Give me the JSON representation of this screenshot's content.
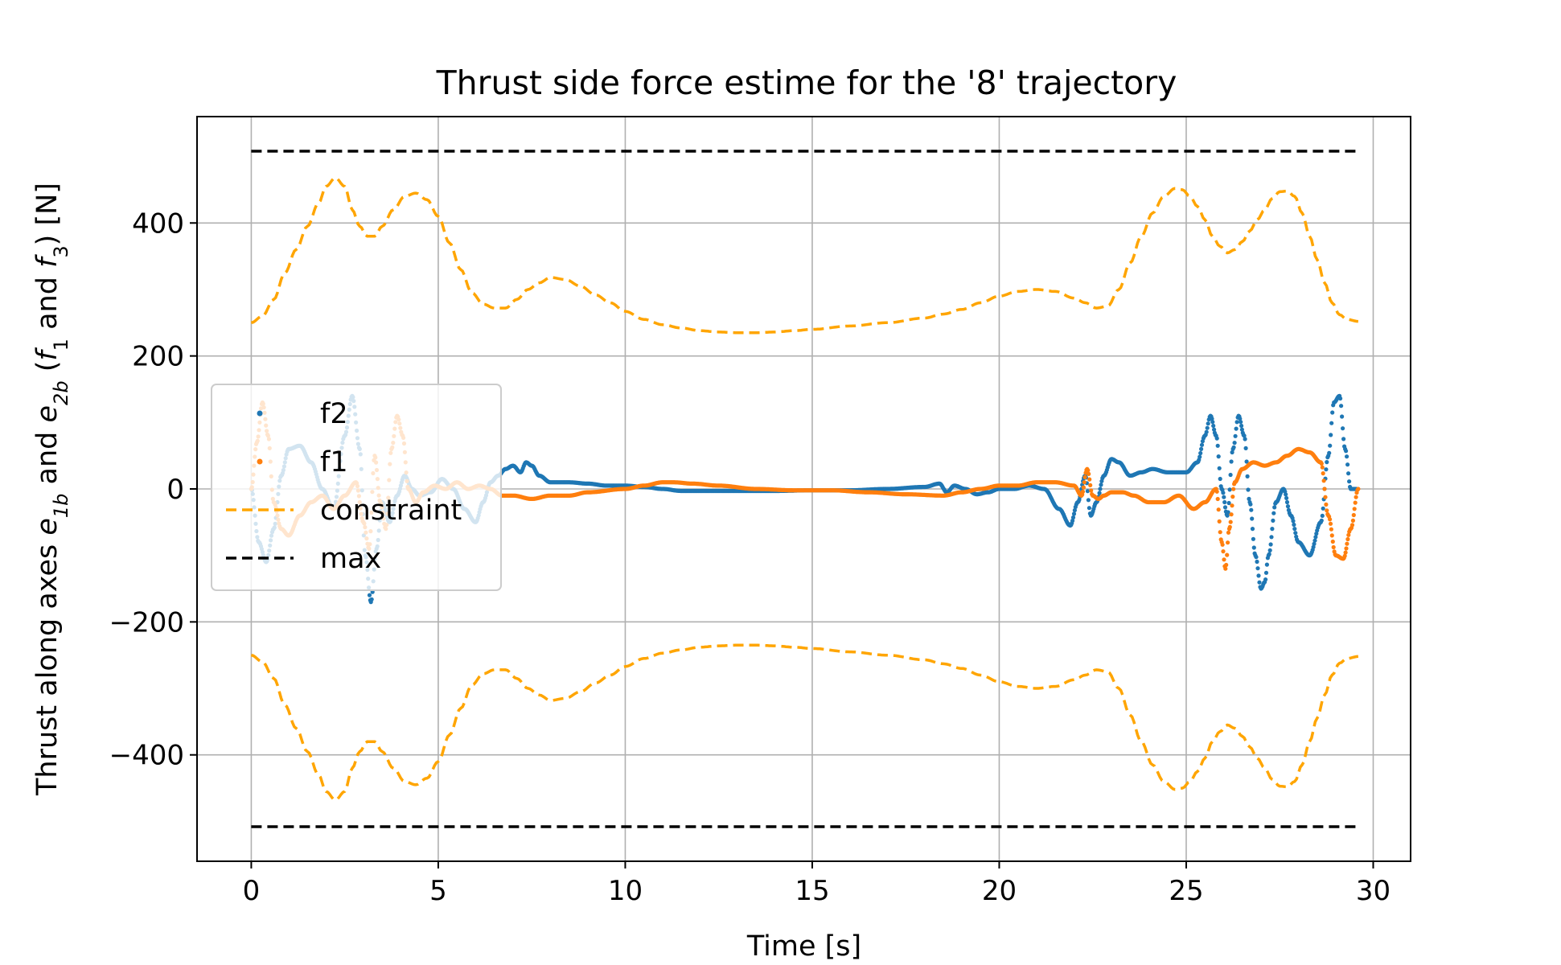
{
  "chart_data": {
    "type": "line",
    "title": "Thrust side force estime for the '8' trajectory",
    "xlabel": "Time [s]",
    "ylabel": {
      "prefix": "Thrust along axes ",
      "e1": "e",
      "e1_sub": "1b",
      "and1": " and ",
      "e2": "e",
      "e2_sub": "2b",
      "paren_open": " (",
      "f1": "f",
      "f1_sub": "1",
      "and2": " and ",
      "f3": "f",
      "f3_sub": "3",
      "suffix": ") [N]"
    },
    "xlim": [
      -1.45,
      31.0
    ],
    "ylim": [
      -560,
      560
    ],
    "xticks": [
      0,
      5,
      10,
      15,
      20,
      25,
      30
    ],
    "yticks": [
      -400,
      -200,
      0,
      200,
      400
    ],
    "ytick_labels": [
      "−400",
      "−200",
      "0",
      "200",
      "400"
    ],
    "grid": true,
    "legend": {
      "position": "center-left",
      "entries": [
        "f2",
        "f1",
        "constraint",
        "max"
      ]
    },
    "series": [
      {
        "name": "f2",
        "style": "dots",
        "color": "#1f77b4",
        "x": [
          0,
          0.2,
          0.4,
          0.6,
          0.8,
          1.0,
          1.3,
          1.6,
          1.9,
          2.2,
          2.5,
          2.7,
          2.9,
          3.05,
          3.2,
          3.35,
          3.5,
          3.7,
          3.9,
          4.1,
          4.3,
          4.5,
          4.8,
          5.1,
          5.4,
          5.7,
          6.0,
          6.2,
          6.4,
          6.6,
          6.8,
          7.0,
          7.2,
          7.35,
          7.5,
          7.7,
          8.0,
          8.5,
          9.0,
          9.5,
          10.0,
          10.5,
          11.0,
          11.5,
          12.0,
          13.0,
          14.0,
          15.0,
          16.0,
          17.0,
          18.0,
          18.4,
          18.6,
          18.8,
          19.1,
          19.4,
          19.7,
          20.0,
          20.4,
          20.8,
          21.2,
          21.6,
          21.9,
          22.1,
          22.3,
          22.45,
          22.6,
          22.8,
          23.0,
          23.2,
          23.5,
          23.8,
          24.1,
          24.5,
          25.0,
          25.3,
          25.5,
          25.65,
          25.8,
          25.95,
          26.1,
          26.25,
          26.4,
          26.55,
          26.7,
          26.85,
          27.0,
          27.1,
          27.2,
          27.4,
          27.6,
          27.8,
          28.0,
          28.3,
          28.6,
          28.8,
          28.95,
          29.1,
          29.25,
          29.4,
          29.55
        ],
        "y": [
          0,
          -80,
          -110,
          -60,
          20,
          60,
          65,
          40,
          0,
          -30,
          80,
          140,
          60,
          -100,
          -170,
          -90,
          -20,
          -50,
          -10,
          20,
          0,
          -10,
          -5,
          15,
          0,
          -30,
          -50,
          -20,
          10,
          20,
          30,
          35,
          25,
          40,
          35,
          20,
          10,
          10,
          8,
          5,
          5,
          3,
          0,
          -3,
          -3,
          -3,
          -3,
          -2,
          -2,
          0,
          3,
          8,
          -5,
          5,
          0,
          -8,
          -5,
          0,
          0,
          5,
          0,
          -30,
          -55,
          -20,
          20,
          -40,
          -20,
          20,
          45,
          40,
          20,
          25,
          30,
          25,
          25,
          40,
          80,
          110,
          80,
          0,
          -40,
          60,
          110,
          80,
          -20,
          -100,
          -150,
          -140,
          -100,
          -20,
          0,
          -40,
          -80,
          -100,
          -50,
          50,
          130,
          140,
          60,
          0,
          0
        ]
      },
      {
        "name": "f1",
        "style": "dots",
        "color": "#ff7f0e",
        "x": [
          0,
          0.15,
          0.3,
          0.45,
          0.6,
          0.8,
          1.0,
          1.3,
          1.6,
          1.9,
          2.2,
          2.5,
          2.8,
          3.0,
          3.15,
          3.3,
          3.45,
          3.6,
          3.75,
          3.9,
          4.05,
          4.2,
          4.4,
          4.6,
          4.9,
          5.2,
          5.5,
          5.8,
          6.1,
          6.4,
          6.7,
          7.0,
          7.5,
          8.0,
          8.5,
          9.0,
          10.0,
          10.5,
          11.0,
          11.3,
          11.8,
          12.5,
          13.5,
          14.5,
          15.5,
          16.5,
          17.5,
          18.5,
          19.0,
          19.5,
          20.0,
          20.5,
          21.0,
          21.5,
          22.0,
          22.2,
          22.35,
          22.5,
          22.65,
          22.8,
          23.0,
          23.3,
          23.6,
          24.0,
          24.4,
          24.8,
          25.2,
          25.5,
          25.8,
          25.95,
          26.05,
          26.15,
          26.3,
          26.5,
          26.8,
          27.1,
          27.4,
          27.7,
          28.0,
          28.3,
          28.6,
          28.8,
          29.0,
          29.2,
          29.4,
          29.6
        ],
        "y": [
          0,
          70,
          130,
          80,
          -20,
          -60,
          -70,
          -40,
          -20,
          -10,
          -30,
          -10,
          10,
          -50,
          -90,
          50,
          -20,
          -60,
          60,
          110,
          80,
          0,
          -20,
          -5,
          5,
          0,
          10,
          0,
          5,
          0,
          -10,
          -10,
          -15,
          -10,
          -10,
          -5,
          0,
          5,
          10,
          10,
          8,
          5,
          0,
          -2,
          -2,
          -5,
          -8,
          -10,
          -5,
          0,
          5,
          5,
          10,
          10,
          5,
          -10,
          30,
          -10,
          -15,
          -10,
          -5,
          -5,
          -10,
          -20,
          -20,
          -10,
          -30,
          -20,
          0,
          -80,
          -120,
          -60,
          10,
          30,
          40,
          35,
          40,
          50,
          60,
          55,
          40,
          -40,
          -100,
          -105,
          -60,
          0
        ]
      },
      {
        "name": "constraint",
        "style": "dashed",
        "color": "#ffa500",
        "mirror": true,
        "x": [
          0,
          0.3,
          0.6,
          0.9,
          1.2,
          1.5,
          1.8,
          2.0,
          2.25,
          2.5,
          2.7,
          2.9,
          3.1,
          3.3,
          3.5,
          3.8,
          4.1,
          4.4,
          4.7,
          5.0,
          5.3,
          5.6,
          5.9,
          6.2,
          6.5,
          6.8,
          7.1,
          7.4,
          7.7,
          8.0,
          8.4,
          8.8,
          9.2,
          9.6,
          10.0,
          10.5,
          11.0,
          11.5,
          12.0,
          12.5,
          13.0,
          13.5,
          14.0,
          14.5,
          15.0,
          16.0,
          17.0,
          18.0,
          18.5,
          19.0,
          19.5,
          20.0,
          20.5,
          21.0,
          21.5,
          22.0,
          22.3,
          22.6,
          22.9,
          23.2,
          23.5,
          23.8,
          24.1,
          24.4,
          24.7,
          24.9,
          25.1,
          25.3,
          25.5,
          25.7,
          25.9,
          26.1,
          26.3,
          26.5,
          26.7,
          26.9,
          27.1,
          27.3,
          27.5,
          27.7,
          27.9,
          28.1,
          28.3,
          28.5,
          28.7,
          28.9,
          29.1,
          29.3,
          29.6
        ],
        "y": [
          250,
          260,
          285,
          325,
          360,
          395,
          430,
          455,
          468,
          455,
          420,
          395,
          380,
          380,
          395,
          420,
          440,
          445,
          435,
          410,
          370,
          330,
          295,
          278,
          272,
          272,
          285,
          300,
          310,
          318,
          315,
          305,
          292,
          280,
          267,
          255,
          247,
          242,
          238,
          236,
          235,
          235,
          236,
          238,
          240,
          245,
          250,
          257,
          263,
          270,
          280,
          290,
          297,
          300,
          297,
          287,
          280,
          272,
          275,
          300,
          340,
          380,
          415,
          440,
          452,
          450,
          440,
          425,
          405,
          380,
          365,
          355,
          360,
          372,
          388,
          405,
          420,
          437,
          447,
          448,
          440,
          415,
          380,
          345,
          310,
          280,
          262,
          255,
          252
        ]
      },
      {
        "name": "max",
        "style": "dashed",
        "color": "#000000",
        "mirror": true,
        "x": [
          0,
          29.6
        ],
        "y": [
          508,
          508
        ]
      }
    ]
  }
}
